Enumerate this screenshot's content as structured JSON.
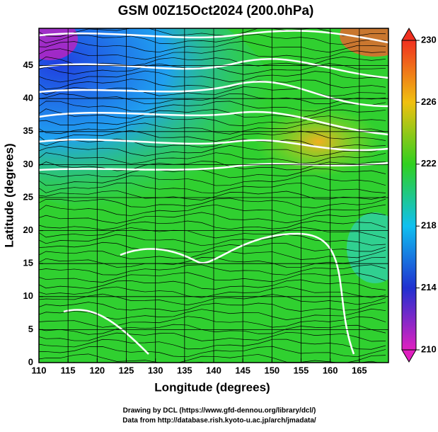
{
  "chart_data": {
    "type": "map",
    "title": "GSM 00Z15Oct2024 (200.0hPa)",
    "x_label": "Longitude (degrees)",
    "y_label": "Latitude  (degrees)",
    "xlim": [
      110,
      170
    ],
    "ylim": [
      0,
      50
    ],
    "xticks": [
      110,
      115,
      120,
      125,
      130,
      135,
      140,
      145,
      150,
      155,
      160,
      165
    ],
    "yticks": [
      0,
      5,
      10,
      15,
      20,
      25,
      30,
      35,
      40,
      45
    ],
    "grid": true,
    "colorbar": {
      "lim": [
        210,
        230
      ],
      "ticks": [
        210,
        214,
        218,
        222,
        226,
        230
      ]
    },
    "credits": [
      "Drawing by DCL (https://www.gfd-dennou.org/library/dcl/)",
      "Data from http://database.rish.kyoto-u.ac.jp/arch/jmadata/"
    ]
  }
}
